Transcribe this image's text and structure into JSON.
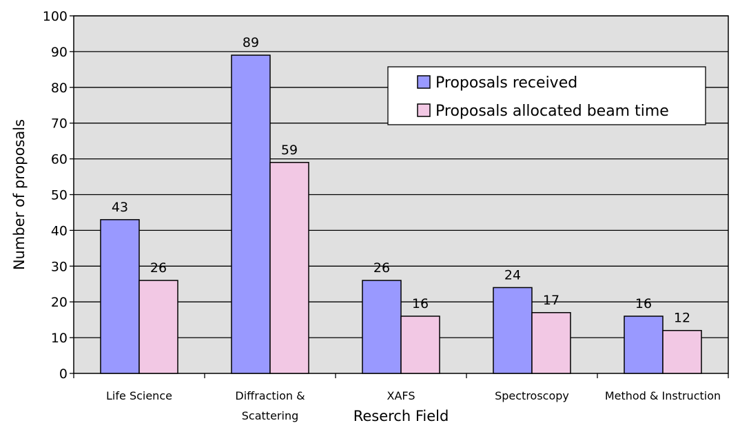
{
  "chart_data": {
    "type": "bar",
    "categories": [
      "Life Science",
      "Diffraction & Scattering",
      "XAFS",
      "Spectroscopy",
      "Method & Instruction"
    ],
    "category_label_lines": [
      [
        "Life Science"
      ],
      [
        "Diffraction &",
        "Scattering"
      ],
      [
        "XAFS"
      ],
      [
        "Spectroscopy"
      ],
      [
        "Method & Instruction"
      ]
    ],
    "series": [
      {
        "name": "Proposals received",
        "values": [
          43,
          89,
          26,
          24,
          16
        ],
        "color": "#9999ff"
      },
      {
        "name": "Proposals allocated beam time",
        "values": [
          26,
          59,
          16,
          17,
          12
        ],
        "color": "#f2c8e4"
      }
    ],
    "xlabel": "Reserch Field",
    "ylabel": "Number of proposals",
    "ylim": [
      0,
      100
    ],
    "yticks": [
      0,
      10,
      20,
      30,
      40,
      50,
      60,
      70,
      80,
      90,
      100
    ],
    "grid": true,
    "legend": "top-right",
    "plot_background": "#e0e0e0"
  }
}
